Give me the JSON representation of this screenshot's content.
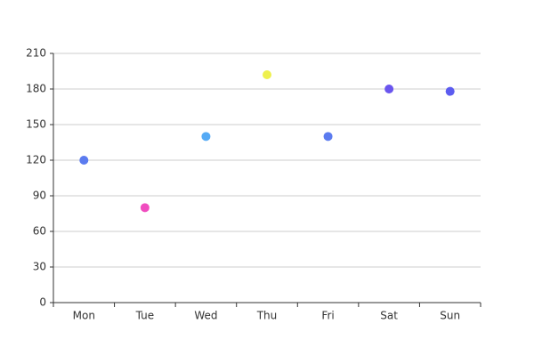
{
  "chart_data": {
    "type": "scatter",
    "categories": [
      "Mon",
      "Tue",
      "Wed",
      "Thu",
      "Fri",
      "Sat",
      "Sun"
    ],
    "values": [
      120,
      80,
      140,
      192,
      140,
      180,
      178
    ],
    "colors": [
      "#5b7bef",
      "#f04dbf",
      "#55aaf5",
      "#eef04d",
      "#5b7bef",
      "#6a55ee",
      "#5c5cf0"
    ],
    "ylim": [
      0,
      210
    ],
    "yticks": [
      0,
      30,
      60,
      90,
      120,
      150,
      180,
      210
    ],
    "grid": true
  }
}
